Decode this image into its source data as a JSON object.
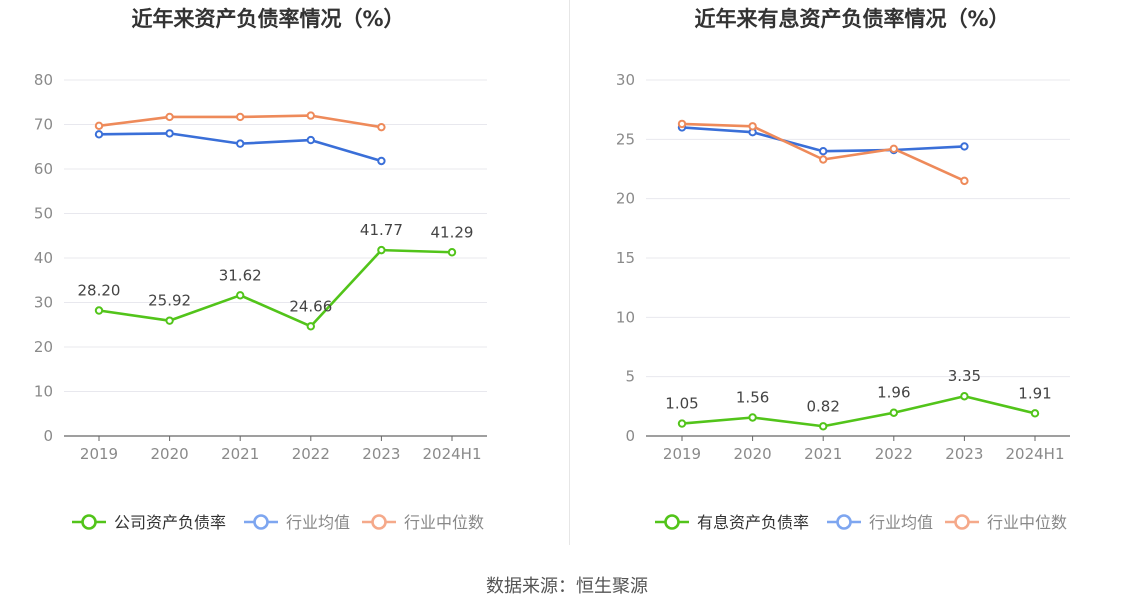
{
  "source": "数据来源：恒生聚源",
  "colors": {
    "company": "#52c41a",
    "industry_avg": "#3a6fd8",
    "industry_median": "#ee8a5a",
    "legend_avg": "#7ea6f0",
    "legend_median": "#f5a98a",
    "grid": "#e8e8ee",
    "axis": "#666666",
    "tick": "#8a8a8a"
  },
  "chart_data": [
    {
      "type": "line",
      "title": "近年来资产负债率情况（%）",
      "categories": [
        "2019",
        "2020",
        "2021",
        "2022",
        "2023",
        "2024H1"
      ],
      "ylim": [
        0,
        80
      ],
      "yticks": [
        0,
        10,
        20,
        30,
        40,
        50,
        60,
        70,
        80
      ],
      "grid": true,
      "legend": "bottom",
      "series": [
        {
          "name": "公司资产负债率",
          "key": "company",
          "values": [
            28.2,
            25.92,
            31.62,
            24.66,
            41.77,
            41.29
          ],
          "labels": [
            "28.20",
            "25.92",
            "31.62",
            "24.66",
            "41.77",
            "41.29"
          ]
        },
        {
          "name": "行业均值",
          "key": "industry_avg",
          "values": [
            67.8,
            68.0,
            65.7,
            66.5,
            61.8,
            null
          ]
        },
        {
          "name": "行业中位数",
          "key": "industry_median",
          "values": [
            69.7,
            71.7,
            71.7,
            72.0,
            69.4,
            null
          ]
        }
      ]
    },
    {
      "type": "line",
      "title": "近年来有息资产负债率情况（%）",
      "categories": [
        "2019",
        "2020",
        "2021",
        "2022",
        "2023",
        "2024H1"
      ],
      "ylim": [
        0,
        30
      ],
      "yticks": [
        0,
        5,
        10,
        15,
        20,
        25,
        30
      ],
      "grid": true,
      "legend": "bottom",
      "series": [
        {
          "name": "有息资产负债率",
          "key": "company",
          "values": [
            1.05,
            1.56,
            0.82,
            1.96,
            3.35,
            1.91
          ],
          "labels": [
            "1.05",
            "1.56",
            "0.82",
            "1.96",
            "3.35",
            "1.91"
          ]
        },
        {
          "name": "行业均值",
          "key": "industry_avg",
          "values": [
            26.0,
            25.6,
            24.0,
            24.1,
            24.4,
            null
          ]
        },
        {
          "name": "行业中位数",
          "key": "industry_median",
          "values": [
            26.3,
            26.1,
            23.3,
            24.2,
            21.5,
            null
          ]
        }
      ]
    }
  ]
}
